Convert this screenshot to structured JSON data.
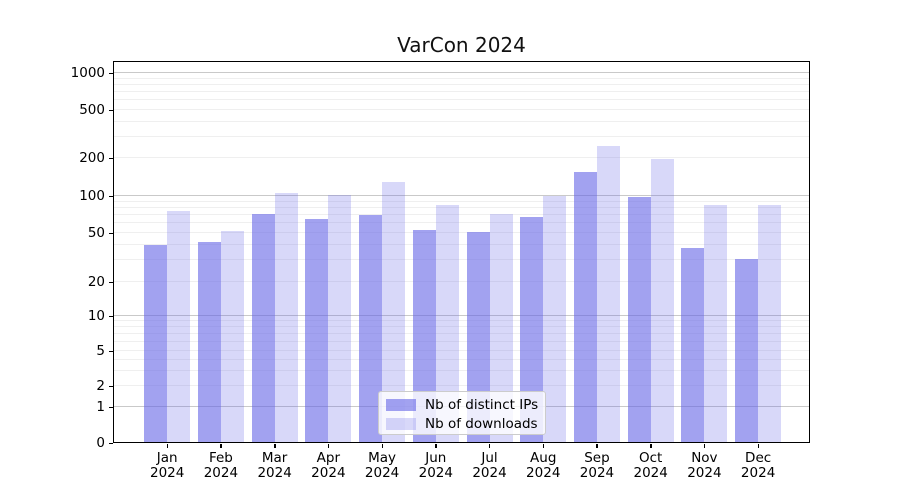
{
  "chart_data": {
    "type": "bar",
    "title": "VarCon 2024",
    "categories": [
      "Jan 2024",
      "Feb 2024",
      "Mar 2024",
      "Apr 2024",
      "May 2024",
      "Jun 2024",
      "Jul 2024",
      "Aug 2024",
      "Sep 2024",
      "Oct 2024",
      "Nov 2024",
      "Dec 2024"
    ],
    "series": [
      {
        "name": "Nb of distinct IPs",
        "color": "rgba(100,100,230,0.60)",
        "values": [
          40,
          42,
          72,
          65,
          70,
          53,
          51,
          68,
          155,
          98,
          38,
          31
        ]
      },
      {
        "name": "Nb of downloads",
        "color": "rgba(100,100,230,0.25)",
        "values": [
          75,
          52,
          105,
          102,
          130,
          85,
          72,
          100,
          250,
          197,
          85,
          85
        ]
      }
    ],
    "y_axis": {
      "scale": "log-like",
      "tick_labels": [
        0,
        1,
        2,
        5,
        10,
        20,
        50,
        100,
        200,
        500,
        1000
      ]
    },
    "x_axis": {
      "tick_label_lines": 2
    },
    "legend": {
      "position": "lower-center",
      "frame": true
    },
    "grid": {
      "major": true,
      "minor": true
    },
    "colors": {
      "axis": "#000000",
      "grid_major": "#c9c9c9",
      "grid_minor": "#efefef"
    }
  }
}
